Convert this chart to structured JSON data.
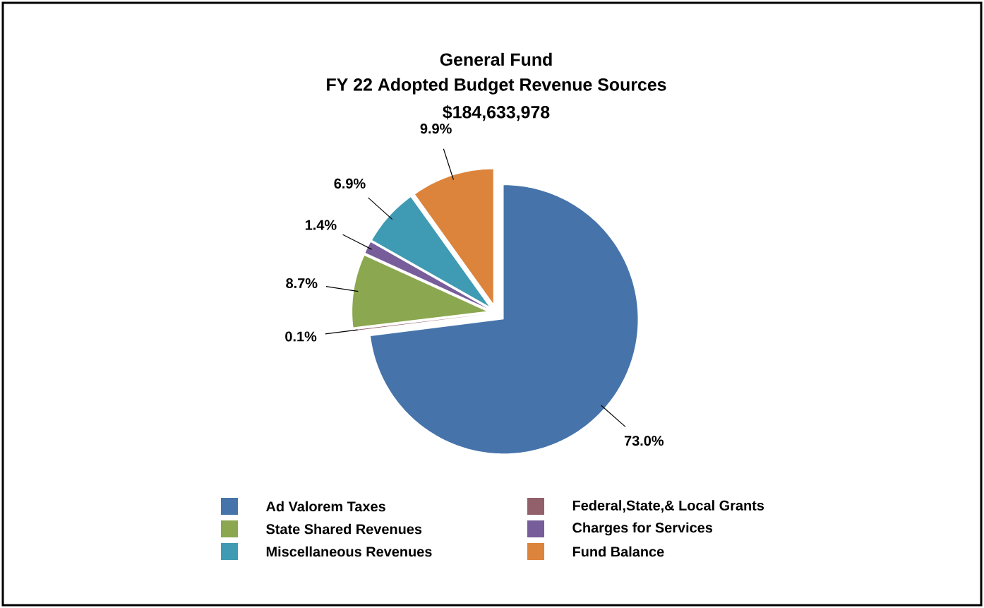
{
  "chart_data": {
    "type": "pie",
    "title": "General Fund",
    "subtitle": "FY 22 Adopted Budget Revenue Sources",
    "annotations": [
      "$184,633,978"
    ],
    "categories": [
      "Ad Valorem Taxes",
      "Federal,State,& Local Grants",
      "State Shared Revenues",
      "Charges for Services",
      "Miscellaneous Revenues",
      "Fund Balance"
    ],
    "values": [
      73.0,
      0.1,
      8.7,
      1.4,
      6.9,
      9.9
    ],
    "colors": [
      "#4674aa",
      "#91606a",
      "#8ba74f",
      "#775d99",
      "#3f9bb3",
      "#dc843c"
    ],
    "value_labels": [
      "73.0%",
      "0.1%",
      "8.7%",
      "1.4%",
      "6.9%",
      "9.9%"
    ],
    "legend": "bottom"
  }
}
